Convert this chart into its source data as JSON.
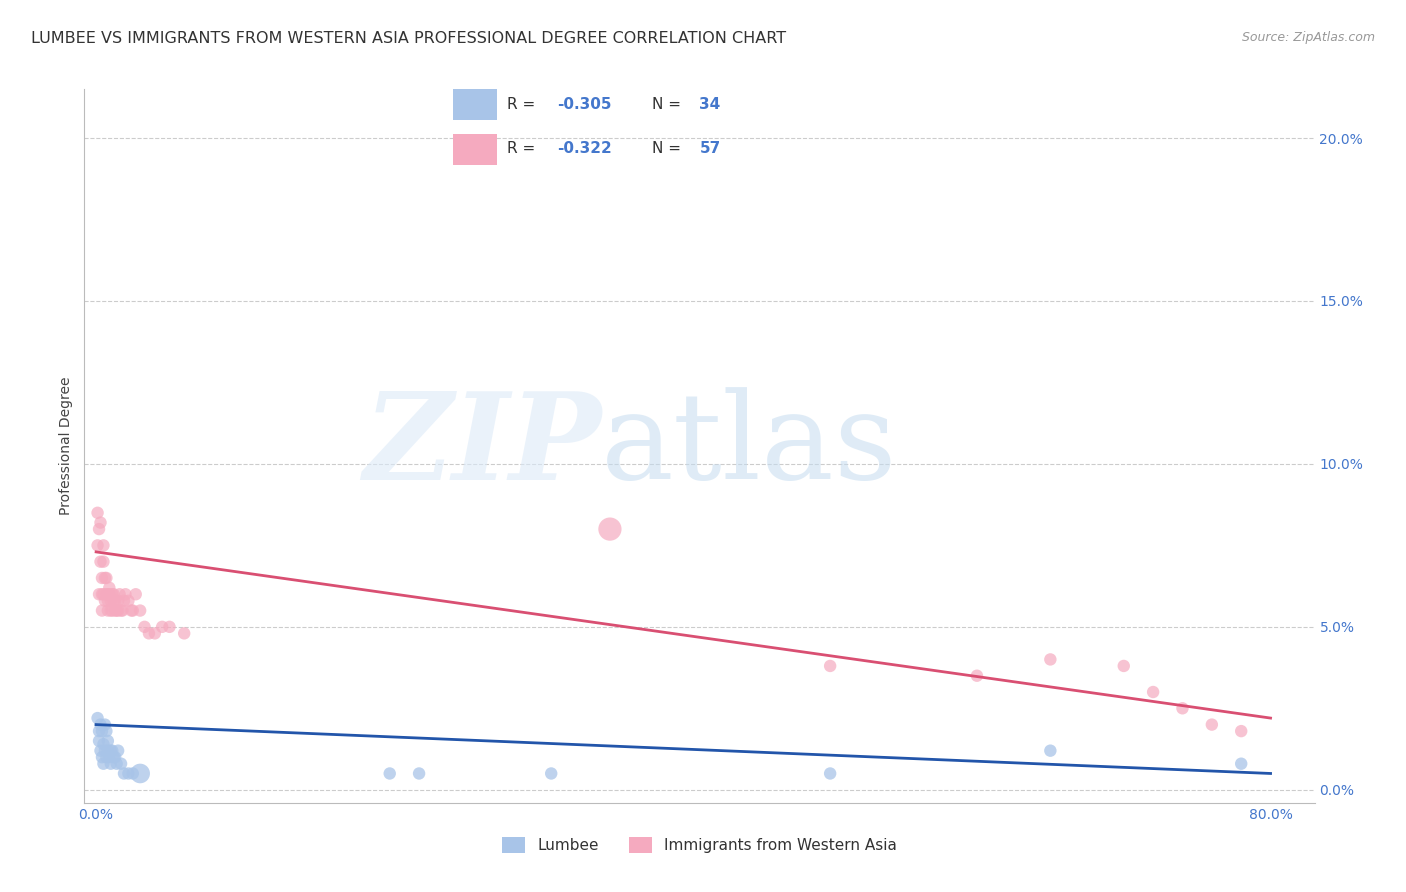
{
  "title": "LUMBEE VS IMMIGRANTS FROM WESTERN ASIA PROFESSIONAL DEGREE CORRELATION CHART",
  "source": "Source: ZipAtlas.com",
  "ylabel": "Professional Degree",
  "xlim_min": -0.008,
  "xlim_max": 0.83,
  "ylim_min": -0.004,
  "ylim_max": 0.215,
  "xtick_positions": [
    0.0,
    0.1,
    0.2,
    0.3,
    0.4,
    0.5,
    0.6,
    0.7,
    0.8
  ],
  "xtick_labels": [
    "0.0%",
    "",
    "",
    "",
    "",
    "",
    "",
    "",
    "80.0%"
  ],
  "yticks_right": [
    0.0,
    0.05,
    0.1,
    0.15,
    0.2
  ],
  "ytick_labels_right": [
    "0.0%",
    "5.0%",
    "10.0%",
    "15.0%",
    "20.0%"
  ],
  "background_color": "#ffffff",
  "grid_color": "#cccccc",
  "lumbee_color": "#a8c4e8",
  "lumbee_line_color": "#2255aa",
  "western_asia_color": "#f5aabf",
  "western_asia_line_color": "#d94f72",
  "legend_label1": "Lumbee",
  "legend_label2": "Immigrants from Western Asia",
  "title_fontsize": 11.5,
  "axis_label_fontsize": 10,
  "tick_fontsize": 10,
  "source_fontsize": 9,
  "lumbee_x": [
    0.001,
    0.002,
    0.002,
    0.003,
    0.003,
    0.004,
    0.004,
    0.005,
    0.005,
    0.006,
    0.006,
    0.007,
    0.007,
    0.008,
    0.008,
    0.009,
    0.01,
    0.01,
    0.011,
    0.012,
    0.013,
    0.014,
    0.015,
    0.017,
    0.019,
    0.022,
    0.025,
    0.03,
    0.2,
    0.22,
    0.31,
    0.5,
    0.65,
    0.78
  ],
  "lumbee_y": [
    0.022,
    0.018,
    0.015,
    0.02,
    0.012,
    0.018,
    0.01,
    0.014,
    0.008,
    0.02,
    0.012,
    0.018,
    0.01,
    0.012,
    0.015,
    0.01,
    0.012,
    0.008,
    0.012,
    0.01,
    0.01,
    0.008,
    0.012,
    0.008,
    0.005,
    0.005,
    0.005,
    0.005,
    0.005,
    0.005,
    0.005,
    0.005,
    0.012,
    0.008
  ],
  "lumbee_sizes": [
    80,
    80,
    80,
    80,
    80,
    80,
    80,
    80,
    80,
    80,
    80,
    80,
    80,
    80,
    80,
    80,
    80,
    80,
    80,
    80,
    80,
    80,
    80,
    80,
    80,
    80,
    80,
    200,
    80,
    80,
    80,
    80,
    80,
    80
  ],
  "western_x": [
    0.001,
    0.001,
    0.002,
    0.002,
    0.003,
    0.003,
    0.004,
    0.004,
    0.004,
    0.005,
    0.005,
    0.005,
    0.006,
    0.006,
    0.007,
    0.007,
    0.008,
    0.008,
    0.008,
    0.009,
    0.009,
    0.01,
    0.01,
    0.011,
    0.011,
    0.012,
    0.012,
    0.013,
    0.013,
    0.014,
    0.015,
    0.015,
    0.016,
    0.017,
    0.018,
    0.019,
    0.02,
    0.022,
    0.024,
    0.025,
    0.027,
    0.03,
    0.033,
    0.036,
    0.04,
    0.045,
    0.05,
    0.06,
    0.35,
    0.5,
    0.6,
    0.65,
    0.7,
    0.72,
    0.74,
    0.76,
    0.78
  ],
  "western_y": [
    0.075,
    0.085,
    0.06,
    0.08,
    0.082,
    0.07,
    0.06,
    0.055,
    0.065,
    0.07,
    0.06,
    0.075,
    0.058,
    0.065,
    0.065,
    0.06,
    0.06,
    0.055,
    0.058,
    0.062,
    0.06,
    0.055,
    0.058,
    0.055,
    0.06,
    0.058,
    0.06,
    0.055,
    0.058,
    0.055,
    0.055,
    0.058,
    0.06,
    0.055,
    0.055,
    0.058,
    0.06,
    0.058,
    0.055,
    0.055,
    0.06,
    0.055,
    0.05,
    0.048,
    0.048,
    0.05,
    0.05,
    0.048,
    0.08,
    0.038,
    0.035,
    0.04,
    0.038,
    0.03,
    0.025,
    0.02,
    0.018
  ],
  "western_sizes": [
    80,
    80,
    80,
    80,
    80,
    80,
    80,
    80,
    80,
    80,
    80,
    80,
    80,
    80,
    80,
    80,
    80,
    80,
    80,
    80,
    80,
    80,
    80,
    80,
    80,
    80,
    80,
    80,
    80,
    80,
    80,
    80,
    80,
    80,
    80,
    80,
    80,
    80,
    80,
    80,
    80,
    80,
    80,
    80,
    80,
    80,
    80,
    80,
    280,
    80,
    80,
    80,
    80,
    80,
    80,
    80,
    80
  ],
  "lumbee_line_x0": 0.0,
  "lumbee_line_x1": 0.8,
  "lumbee_line_y0": 0.02,
  "lumbee_line_y1": 0.005,
  "western_line_x0": 0.0,
  "western_line_x1": 0.8,
  "western_line_y0": 0.073,
  "western_line_y1": 0.022
}
